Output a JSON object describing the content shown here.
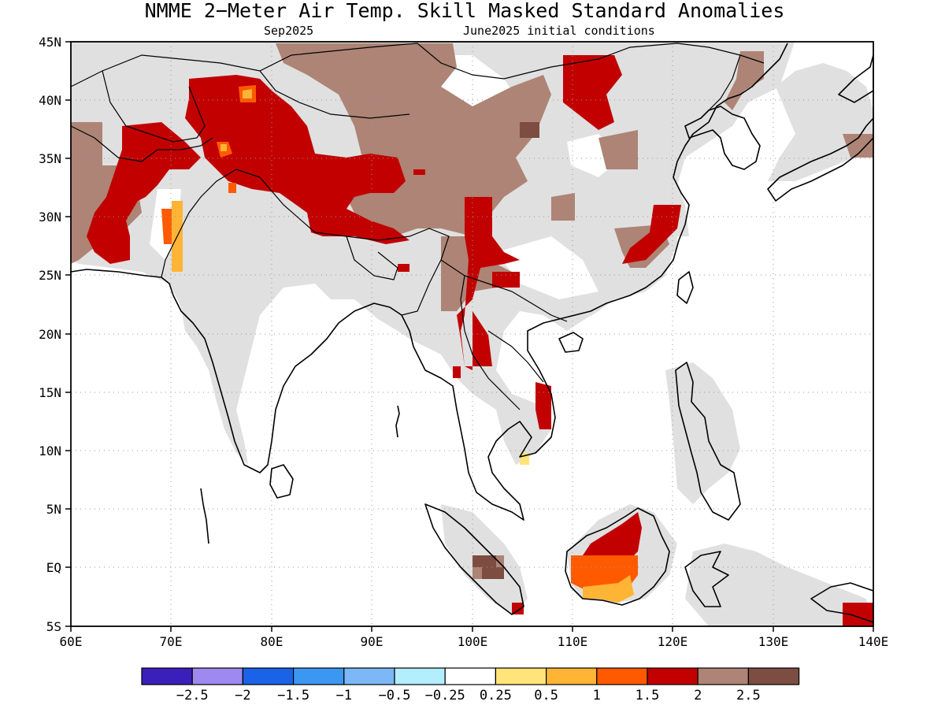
{
  "title": "NMME 2−Meter Air Temp. Skill Masked Standard Anomalies",
  "subtitle_left": "Sep2025",
  "subtitle_right": "June2025 initial conditions",
  "map": {
    "lon_range": [
      60,
      140
    ],
    "lat_range": [
      -5,
      45
    ],
    "x_ticks": [
      "60E",
      "70E",
      "80E",
      "90E",
      "100E",
      "110E",
      "120E",
      "130E",
      "140E"
    ],
    "y_ticks": [
      "45N",
      "40N",
      "35N",
      "30N",
      "25N",
      "20N",
      "15N",
      "10N",
      "5N",
      "EQ",
      "5S"
    ],
    "gridlines": "dotted",
    "colors": {
      "masked": "#e0e0e0",
      "c_1_1_5": "#ff5a00",
      "c_0_5_1": "#ffb435",
      "c_1_5_2": "#c20000",
      "c_2_2_5": "#ad8475",
      "c_gt_2_5": "#7c4d40",
      "coast": "#000000"
    }
  },
  "colorbar": {
    "colors": [
      "#3a1fbb",
      "#9d89f0",
      "#1a62e8",
      "#3c97f3",
      "#7cb8f7",
      "#b2eefc",
      "#ffffff",
      "#ffe479",
      "#ffb435",
      "#ff5a00",
      "#c20000",
      "#ad8475",
      "#7c4d40"
    ],
    "labels": [
      "−2.5",
      "−2",
      "−1.5",
      "−1",
      "−0.5",
      "−0.25",
      "0.25",
      "0.5",
      "1",
      "1.5",
      "2",
      "2.5"
    ]
  }
}
